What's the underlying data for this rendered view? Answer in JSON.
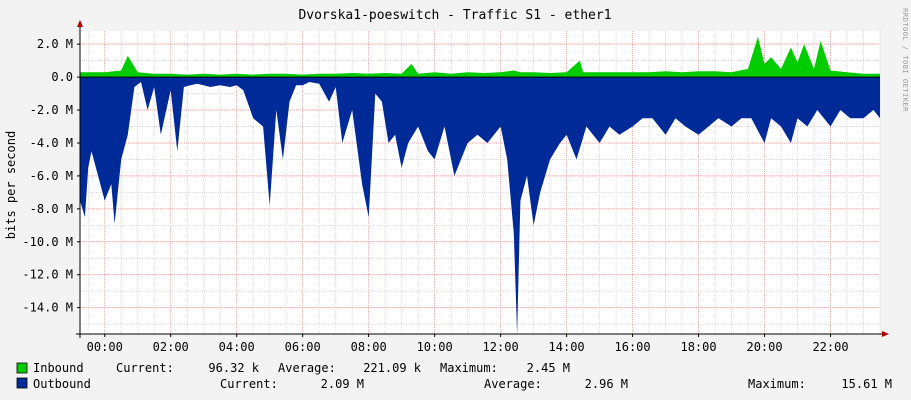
{
  "chart_data": {
    "type": "area",
    "title": "Dvorska1-poeswitch - Traffic S1 - ether1",
    "xlabel": "",
    "ylabel": "bits per second",
    "ylim": [
      -15.6,
      2.8
    ],
    "y_unit_label": "M",
    "grid": true,
    "x_ticks": [
      "00:00",
      "02:00",
      "04:00",
      "06:00",
      "08:00",
      "10:00",
      "12:00",
      "14:00",
      "16:00",
      "18:00",
      "20:00",
      "22:00"
    ],
    "y_ticks": [
      "2.0 M",
      "0.0",
      "-2.0 M",
      "-4.0 M",
      "-6.0 M",
      "-8.0 M",
      "-10.0 M",
      "-12.0 M",
      "-14.0 M"
    ],
    "y_tick_values": [
      2,
      0,
      -2,
      -4,
      -6,
      -8,
      -10,
      -12,
      -14
    ],
    "x_range_hours": [
      -0.75,
      23.5
    ],
    "series": [
      {
        "name": "Inbound",
        "color": "#00cc00",
        "x": [
          -0.75,
          0,
          0.5,
          0.7,
          1,
          1.5,
          2,
          2.5,
          3,
          3.5,
          4,
          4.5,
          5,
          5.5,
          6,
          6.5,
          7,
          7.5,
          8,
          8.5,
          9,
          9.3,
          9.5,
          10,
          10.5,
          11,
          11.5,
          12,
          12.4,
          12.6,
          13,
          13.5,
          14,
          14.4,
          14.5,
          15,
          15.5,
          16,
          16.5,
          17,
          17.5,
          18,
          18.5,
          19,
          19.5,
          19.8,
          20,
          20.2,
          20.5,
          20.8,
          21,
          21.2,
          21.5,
          21.7,
          22,
          22.5,
          23,
          23.5
        ],
        "values": [
          0.3,
          0.3,
          0.4,
          1.3,
          0.3,
          0.2,
          0.2,
          0.15,
          0.2,
          0.15,
          0.2,
          0.15,
          0.2,
          0.2,
          0.15,
          0.2,
          0.2,
          0.25,
          0.2,
          0.25,
          0.2,
          0.8,
          0.2,
          0.3,
          0.2,
          0.3,
          0.25,
          0.3,
          0.4,
          0.3,
          0.3,
          0.25,
          0.3,
          1.0,
          0.3,
          0.3,
          0.3,
          0.3,
          0.3,
          0.35,
          0.3,
          0.35,
          0.35,
          0.3,
          0.5,
          2.45,
          0.8,
          1.2,
          0.5,
          1.8,
          0.9,
          2.0,
          0.5,
          2.2,
          0.4,
          0.3,
          0.2,
          0.2
        ]
      },
      {
        "name": "Outbound",
        "color": "#002a97",
        "x": [
          -0.75,
          -0.6,
          -0.5,
          -0.4,
          -0.2,
          0,
          0.2,
          0.3,
          0.5,
          0.7,
          0.9,
          1.1,
          1.3,
          1.5,
          1.7,
          2,
          2.2,
          2.4,
          2.6,
          2.8,
          3,
          3.2,
          3.5,
          3.8,
          4,
          4.2,
          4.5,
          4.8,
          5,
          5.2,
          5.4,
          5.6,
          5.8,
          6,
          6.2,
          6.5,
          6.8,
          7,
          7.2,
          7.5,
          7.8,
          8,
          8.2,
          8.4,
          8.6,
          8.8,
          9,
          9.2,
          9.5,
          9.8,
          10,
          10.3,
          10.6,
          11,
          11.3,
          11.6,
          12,
          12.2,
          12.4,
          12.5,
          12.6,
          12.8,
          13,
          13.2,
          13.5,
          13.8,
          14,
          14.3,
          14.6,
          15,
          15.3,
          15.6,
          16,
          16.3,
          16.6,
          17,
          17.3,
          17.6,
          18,
          18.3,
          18.6,
          19,
          19.3,
          19.6,
          20,
          20.2,
          20.5,
          20.8,
          21,
          21.3,
          21.6,
          22,
          22.3,
          22.6,
          23,
          23.3,
          23.5
        ],
        "values": [
          -7.5,
          -8.5,
          -5.5,
          -4.5,
          -6.0,
          -7.5,
          -6.5,
          -8.9,
          -5.0,
          -3.5,
          -0.6,
          -0.3,
          -2.0,
          -0.6,
          -3.5,
          -0.8,
          -4.5,
          -0.6,
          -0.5,
          -0.4,
          -0.5,
          -0.6,
          -0.5,
          -0.6,
          -0.5,
          -0.8,
          -2.5,
          -3.0,
          -7.8,
          -2.0,
          -5.0,
          -1.5,
          -0.5,
          -0.5,
          -0.3,
          -0.4,
          -1.5,
          -0.6,
          -4.0,
          -2.0,
          -6.5,
          -8.5,
          -1.0,
          -1.5,
          -4.0,
          -3.5,
          -5.5,
          -4.0,
          -3.0,
          -4.5,
          -5.0,
          -3.0,
          -6.0,
          -4.0,
          -3.5,
          -4.0,
          -3.0,
          -5.0,
          -9.5,
          -15.6,
          -7.5,
          -6.0,
          -9.0,
          -7.0,
          -5.0,
          -4.0,
          -3.5,
          -5.0,
          -3.0,
          -4.0,
          -3.0,
          -3.5,
          -3.0,
          -2.5,
          -2.5,
          -3.5,
          -2.5,
          -3.0,
          -3.5,
          -3.0,
          -2.5,
          -3.0,
          -2.5,
          -2.5,
          -4.0,
          -2.5,
          -3.0,
          -4.0,
          -2.5,
          -3.0,
          -2.0,
          -3.0,
          -2.0,
          -2.5,
          -2.5,
          -2.0,
          -2.5
        ]
      }
    ]
  },
  "watermark": "RRDTOOL / TOBI OETIKER",
  "legend": {
    "inbound": {
      "name": "Inbound",
      "current_label": "Current:",
      "current": "96.32 k",
      "average_label": "Average:",
      "average": "221.09 k",
      "maximum_label": "Maximum:",
      "maximum": "2.45 M",
      "color": "#00cc00"
    },
    "outbound": {
      "name": "Outbound",
      "current_label": "Current:",
      "current": "2.09 M",
      "average_label": "Average:",
      "average": "2.96 M",
      "maximum_label": "Maximum:",
      "maximum": "15.61 M",
      "color": "#002a97"
    }
  }
}
